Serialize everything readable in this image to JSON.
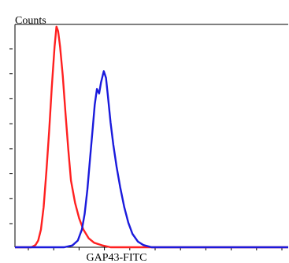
{
  "chart_data": {
    "type": "line",
    "title": "",
    "ylabel": "Counts",
    "xlabel": "GAP43-FITC",
    "x_log_scale": true,
    "x_tick_count": 11,
    "y_tick_count": 8,
    "ylim": [
      0,
      1
    ],
    "grid": false,
    "legend": "none",
    "series": [
      {
        "color": "#ff2020",
        "points": [
          [
            0.0,
            0.0
          ],
          [
            0.06,
            0.0
          ],
          [
            0.075,
            0.01
          ],
          [
            0.085,
            0.03
          ],
          [
            0.095,
            0.08
          ],
          [
            0.105,
            0.18
          ],
          [
            0.115,
            0.34
          ],
          [
            0.125,
            0.52
          ],
          [
            0.135,
            0.72
          ],
          [
            0.145,
            0.9
          ],
          [
            0.152,
            0.99
          ],
          [
            0.158,
            0.97
          ],
          [
            0.165,
            0.9
          ],
          [
            0.175,
            0.77
          ],
          [
            0.185,
            0.6
          ],
          [
            0.195,
            0.44
          ],
          [
            0.205,
            0.3
          ],
          [
            0.22,
            0.2
          ],
          [
            0.235,
            0.13
          ],
          [
            0.25,
            0.08
          ],
          [
            0.27,
            0.04
          ],
          [
            0.29,
            0.02
          ],
          [
            0.32,
            0.008
          ],
          [
            0.35,
            0.0
          ],
          [
            1.0,
            0.0
          ]
        ]
      },
      {
        "color": "#1a1adc",
        "points": [
          [
            0.0,
            0.0
          ],
          [
            0.18,
            0.0
          ],
          [
            0.21,
            0.008
          ],
          [
            0.23,
            0.03
          ],
          [
            0.245,
            0.08
          ],
          [
            0.255,
            0.15
          ],
          [
            0.265,
            0.26
          ],
          [
            0.275,
            0.4
          ],
          [
            0.285,
            0.54
          ],
          [
            0.292,
            0.64
          ],
          [
            0.3,
            0.71
          ],
          [
            0.308,
            0.69
          ],
          [
            0.315,
            0.74
          ],
          [
            0.325,
            0.79
          ],
          [
            0.333,
            0.76
          ],
          [
            0.34,
            0.68
          ],
          [
            0.35,
            0.56
          ],
          [
            0.36,
            0.46
          ],
          [
            0.372,
            0.36
          ],
          [
            0.385,
            0.27
          ],
          [
            0.4,
            0.18
          ],
          [
            0.415,
            0.11
          ],
          [
            0.43,
            0.06
          ],
          [
            0.45,
            0.025
          ],
          [
            0.47,
            0.01
          ],
          [
            0.5,
            0.0
          ],
          [
            1.0,
            0.0
          ]
        ]
      }
    ]
  }
}
